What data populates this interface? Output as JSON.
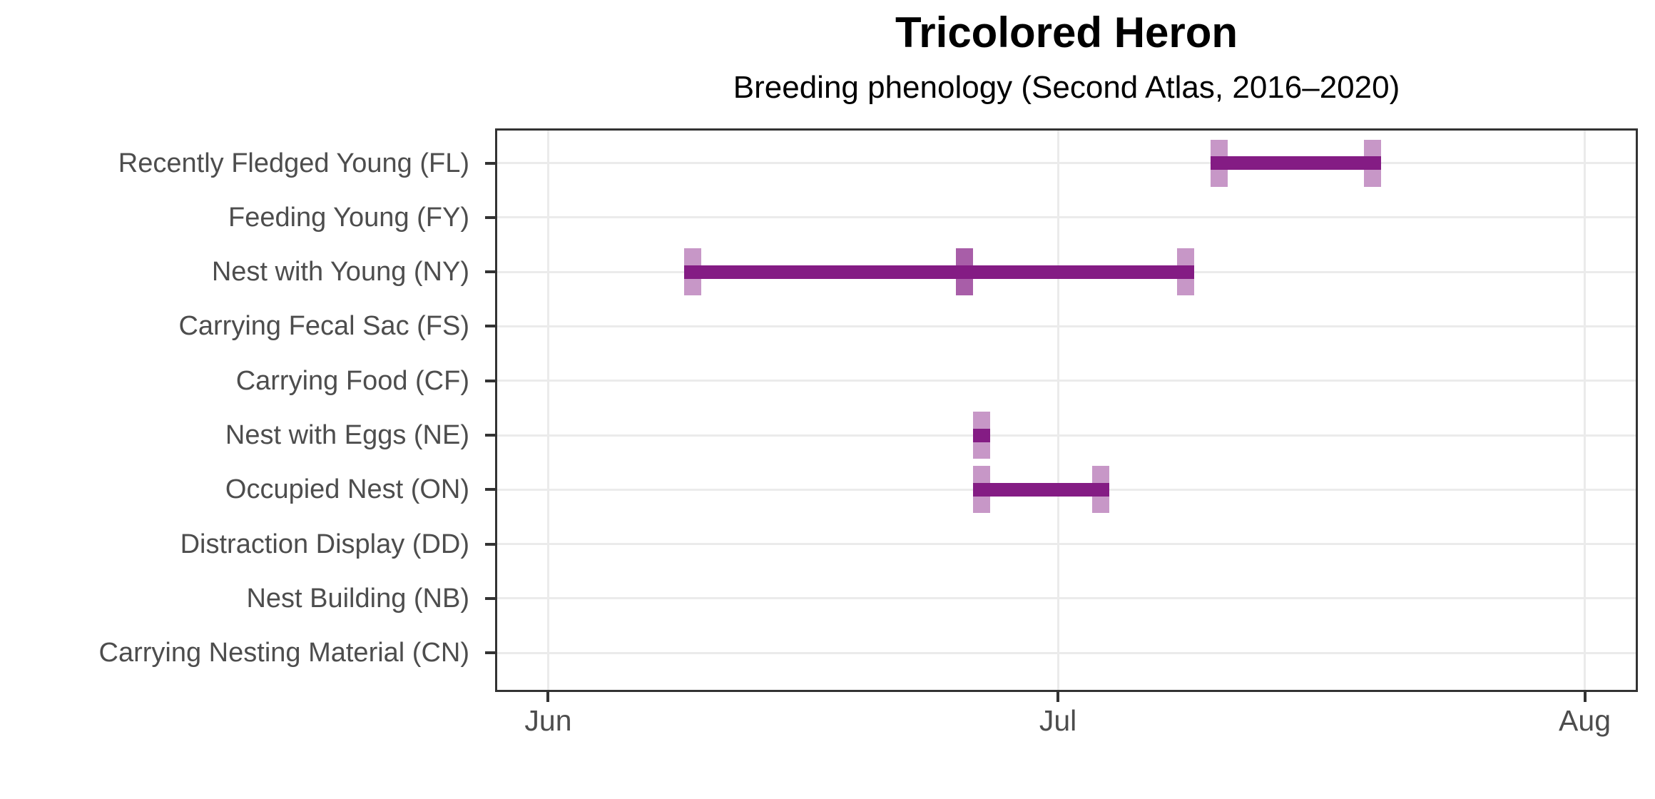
{
  "chart_data": {
    "type": "range",
    "title": "Tricolored Heron",
    "subtitle": "Breeding phenology (Second Atlas, 2016–2020)",
    "x_axis": {
      "tick_labels": [
        "Jun",
        "Jul",
        "Aug"
      ],
      "domain_start": "May 29",
      "domain_end": "Aug 4",
      "gridlines": true
    },
    "y_axis": {
      "categories": [
        "Recently Fledged Young (FL)",
        "Feeding Young (FY)",
        "Nest with Young (NY)",
        "Carrying Fecal Sac (FS)",
        "Carrying Food (CF)",
        "Nest with Eggs (NE)",
        "Occupied Nest (ON)",
        "Distraction Display (DD)",
        "Nest Building (NB)",
        "Carrying Nesting Material (CN)"
      ]
    },
    "series": [
      {
        "category": "Recently Fledged Young (FL)",
        "first_date": "Jul 10",
        "last_date": "Jul 19",
        "observation_ticks": [
          {
            "date": "Jul 10",
            "weight": 1
          },
          {
            "date": "Jul 19",
            "weight": 1
          }
        ]
      },
      {
        "category": "Nest with Young (NY)",
        "first_date": "Jun 9",
        "last_date": "Jul 8",
        "observation_ticks": [
          {
            "date": "Jun 9",
            "weight": 1
          },
          {
            "date": "Jun 25",
            "weight": 2
          },
          {
            "date": "Jul 8",
            "weight": 1
          }
        ]
      },
      {
        "category": "Nest with Eggs (NE)",
        "first_date": "Jun 26",
        "last_date": "Jun 26",
        "observation_ticks": [
          {
            "date": "Jun 26",
            "weight": 1
          }
        ]
      },
      {
        "category": "Occupied Nest (ON)",
        "first_date": "Jun 26",
        "last_date": "Jul 3",
        "observation_ticks": [
          {
            "date": "Jun 26",
            "weight": 1
          },
          {
            "date": "Jul 3",
            "weight": 1
          }
        ]
      }
    ],
    "colors": {
      "bar": "#841C84",
      "tick_alpha_single": 0.46,
      "gridline": "#EBEBEB",
      "panel_border": "#333333",
      "axis_tick_mark": "#333333",
      "axis_text": "#4D4D4D",
      "title_text": "#000000"
    },
    "legend": "none"
  }
}
